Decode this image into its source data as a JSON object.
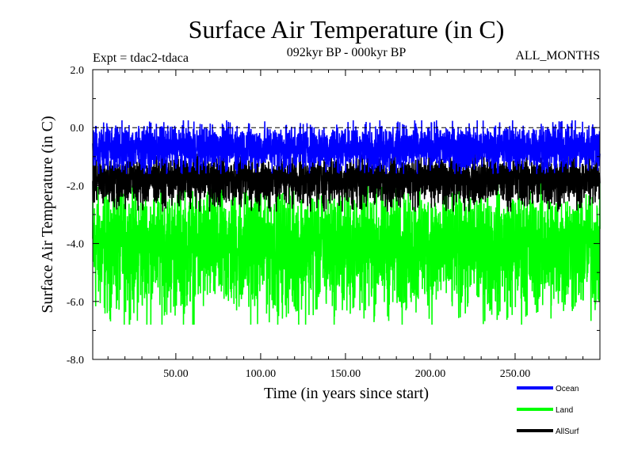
{
  "chart_data": {
    "type": "line",
    "title": "Surface Air Temperature (in C)",
    "subtitle": "092kyr BP - 000kyr BP",
    "experiment_label": "Expt = tdac2-tdaca",
    "months_label": "ALL_MONTHS",
    "xlabel": "Time (in years since start)",
    "ylabel": "Surface Air Temperature (in C)",
    "xlim": [
      1,
      300
    ],
    "ylim": [
      -8.0,
      2.0
    ],
    "x_ticks": [
      50,
      100,
      150,
      200,
      250
    ],
    "x_tick_labels": [
      "50.00",
      "100.00",
      "150.00",
      "200.00",
      "250.00"
    ],
    "y_ticks": [
      2.0,
      0.0,
      -2.0,
      -4.0,
      -6.0,
      -8.0
    ],
    "y_tick_labels": [
      "2.0",
      "0.0",
      "-2.0",
      "-4.0",
      "-6.0",
      "-8.0"
    ],
    "reference_line": 0.0,
    "series": [
      {
        "name": "Land",
        "color": "#00ff00",
        "mean": -4.0,
        "min": -6.8,
        "max": -1.9,
        "note": "monthly noise between approx. -6.8 and -1.9"
      },
      {
        "name": "AllSurf",
        "color": "#000000",
        "mean": -1.7,
        "min": -2.9,
        "max": -0.9,
        "note": "monthly noise between approx. -2.9 and -0.9"
      },
      {
        "name": "Ocean",
        "color": "#0000ff",
        "mean": -0.7,
        "min": -1.6,
        "max": 0.25,
        "note": "monthly noise between approx. -1.6 and 0.25"
      }
    ],
    "legend": [
      {
        "label": "Ocean",
        "color": "#0000ff"
      },
      {
        "label": "Land",
        "color": "#00ff00"
      },
      {
        "label": "AllSurf",
        "color": "#000000"
      }
    ]
  }
}
